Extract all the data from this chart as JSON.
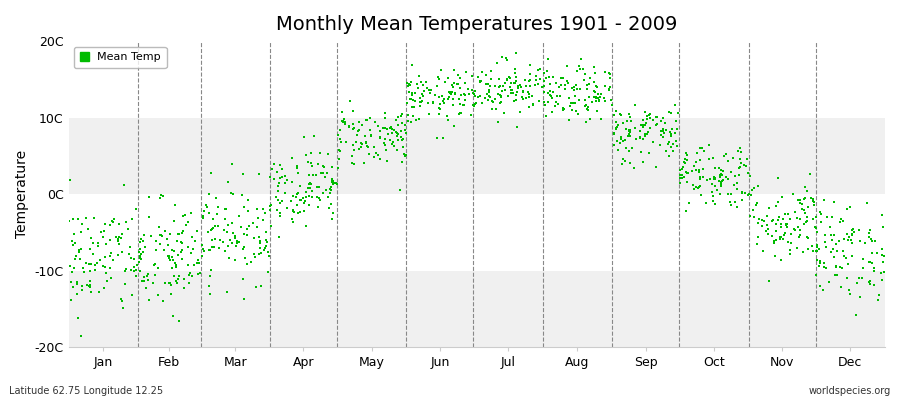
{
  "title": "Monthly Mean Temperatures 1901 - 2009",
  "ylabel": "Temperature",
  "subtitle_left": "Latitude 62.75 Longitude 12.25",
  "subtitle_right": "worldspecies.org",
  "legend_label": "Mean Temp",
  "dot_color": "#00bb00",
  "background_color": "#ffffff",
  "band_color_a": "#f0f0f0",
  "band_color_b": "#ffffff",
  "ylim": [
    -20,
    20
  ],
  "yticks": [
    -20,
    -10,
    0,
    10,
    20
  ],
  "ytick_labels": [
    "-20C",
    "-10C",
    "0C",
    "10C",
    "20C"
  ],
  "months": [
    "Jan",
    "Feb",
    "Mar",
    "Apr",
    "May",
    "Jun",
    "Jul",
    "Aug",
    "Sep",
    "Oct",
    "Nov",
    "Dec"
  ],
  "month_days": [
    31,
    28,
    31,
    30,
    31,
    30,
    31,
    31,
    30,
    31,
    30,
    31
  ],
  "monthly_means": [
    -8.5,
    -8.5,
    -5.0,
    1.0,
    7.5,
    12.5,
    14.0,
    13.0,
    8.0,
    2.5,
    -3.5,
    -7.5
  ],
  "monthly_stds": [
    3.8,
    3.8,
    3.2,
    2.5,
    2.0,
    1.8,
    1.8,
    1.8,
    2.0,
    2.2,
    2.8,
    3.2
  ],
  "n_years": 109,
  "random_seed": 42,
  "dot_size": 3,
  "dashed_line_color": "#888888",
  "spine_color": "#cccccc",
  "title_fontsize": 14,
  "axis_fontsize": 9,
  "ylabel_fontsize": 10
}
